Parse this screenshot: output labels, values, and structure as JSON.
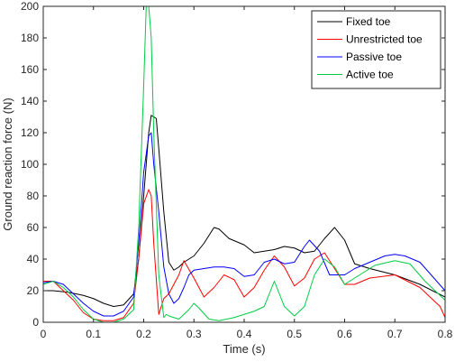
{
  "chart_data": {
    "type": "line",
    "xlabel": "Time (s)",
    "ylabel": "Ground reaction force (N)",
    "xlim": [
      0,
      0.8
    ],
    "ylim": [
      0,
      200
    ],
    "xticks": [
      0,
      0.1,
      0.2,
      0.3,
      0.4,
      0.5,
      0.6,
      0.7,
      0.8
    ],
    "xtick_labels": [
      "0",
      "0.1",
      "0.2",
      "0.3",
      "0.4",
      "0.5",
      "0.6",
      "0.7",
      "0.8"
    ],
    "yticks": [
      0,
      20,
      40,
      60,
      80,
      100,
      120,
      140,
      160,
      180,
      200
    ],
    "ytick_labels": [
      "0",
      "20",
      "40",
      "60",
      "80",
      "100",
      "120",
      "140",
      "160",
      "180",
      "200"
    ],
    "grid": false,
    "legend_position": "top-right",
    "series": [
      {
        "name": "Fixed toe",
        "color": "#000000",
        "x": [
          0,
          0.02,
          0.05,
          0.08,
          0.1,
          0.12,
          0.14,
          0.16,
          0.18,
          0.19,
          0.2,
          0.21,
          0.215,
          0.225,
          0.23,
          0.24,
          0.25,
          0.26,
          0.27,
          0.28,
          0.3,
          0.32,
          0.34,
          0.35,
          0.37,
          0.4,
          0.42,
          0.44,
          0.46,
          0.48,
          0.5,
          0.52,
          0.54,
          0.56,
          0.58,
          0.6,
          0.62,
          0.65,
          0.7,
          0.75,
          0.8
        ],
        "y": [
          20,
          20,
          19,
          17,
          15,
          12,
          10,
          11,
          18,
          40,
          80,
          120,
          131,
          129,
          110,
          70,
          38,
          33,
          35,
          38,
          42,
          50,
          60,
          59,
          53,
          49,
          44,
          45,
          46,
          48,
          47,
          44,
          45,
          53,
          60,
          52,
          37,
          34,
          30,
          24,
          16
        ]
      },
      {
        "name": "Unrestricted toe",
        "color": "#ff0000",
        "x": [
          0,
          0.02,
          0.04,
          0.06,
          0.08,
          0.1,
          0.12,
          0.14,
          0.16,
          0.18,
          0.19,
          0.2,
          0.21,
          0.215,
          0.22,
          0.23,
          0.24,
          0.25,
          0.26,
          0.27,
          0.28,
          0.3,
          0.32,
          0.34,
          0.36,
          0.38,
          0.4,
          0.42,
          0.44,
          0.46,
          0.48,
          0.5,
          0.52,
          0.54,
          0.56,
          0.58,
          0.6,
          0.62,
          0.65,
          0.7,
          0.75,
          0.79,
          0.8
        ],
        "y": [
          26,
          26,
          20,
          14,
          6,
          2,
          1,
          1,
          3,
          12,
          40,
          75,
          84,
          80,
          50,
          5,
          15,
          18,
          24,
          30,
          39,
          28,
          16,
          22,
          30,
          27,
          16,
          22,
          33,
          42,
          35,
          23,
          28,
          40,
          44,
          34,
          24,
          24,
          28,
          30,
          22,
          10,
          3
        ]
      },
      {
        "name": "Passive toe",
        "color": "#0000ff",
        "x": [
          0,
          0.02,
          0.04,
          0.06,
          0.08,
          0.1,
          0.12,
          0.14,
          0.16,
          0.18,
          0.19,
          0.2,
          0.21,
          0.215,
          0.22,
          0.23,
          0.24,
          0.25,
          0.26,
          0.27,
          0.28,
          0.29,
          0.3,
          0.32,
          0.34,
          0.36,
          0.38,
          0.4,
          0.42,
          0.44,
          0.46,
          0.48,
          0.5,
          0.52,
          0.53,
          0.55,
          0.57,
          0.6,
          0.62,
          0.65,
          0.68,
          0.7,
          0.72,
          0.75,
          0.8
        ],
        "y": [
          25,
          26,
          24,
          18,
          12,
          7,
          4,
          4,
          7,
          16,
          50,
          95,
          118,
          120,
          100,
          70,
          35,
          18,
          12,
          15,
          22,
          30,
          33,
          34,
          35,
          35,
          34,
          29,
          30,
          38,
          40,
          37,
          38,
          48,
          52,
          45,
          30,
          30,
          34,
          38,
          42,
          43,
          42,
          38,
          20
        ]
      },
      {
        "name": "Active toe",
        "color": "#00cc44",
        "x": [
          0,
          0.02,
          0.04,
          0.06,
          0.08,
          0.1,
          0.12,
          0.14,
          0.16,
          0.18,
          0.19,
          0.2,
          0.205,
          0.21,
          0.215,
          0.22,
          0.23,
          0.24,
          0.245,
          0.25,
          0.26,
          0.27,
          0.28,
          0.29,
          0.3,
          0.31,
          0.33,
          0.35,
          0.38,
          0.4,
          0.42,
          0.44,
          0.46,
          0.48,
          0.5,
          0.52,
          0.54,
          0.56,
          0.58,
          0.6,
          0.63,
          0.66,
          0.7,
          0.73,
          0.76,
          0.8
        ],
        "y": [
          24,
          26,
          22,
          16,
          8,
          2,
          0,
          0,
          2,
          8,
          60,
          150,
          200,
          200,
          180,
          120,
          30,
          3,
          5,
          4,
          3,
          2,
          5,
          8,
          12,
          9,
          2,
          1,
          3,
          5,
          7,
          10,
          26,
          10,
          4,
          10,
          30,
          40,
          35,
          24,
          30,
          36,
          39,
          37,
          26,
          14
        ]
      }
    ]
  }
}
